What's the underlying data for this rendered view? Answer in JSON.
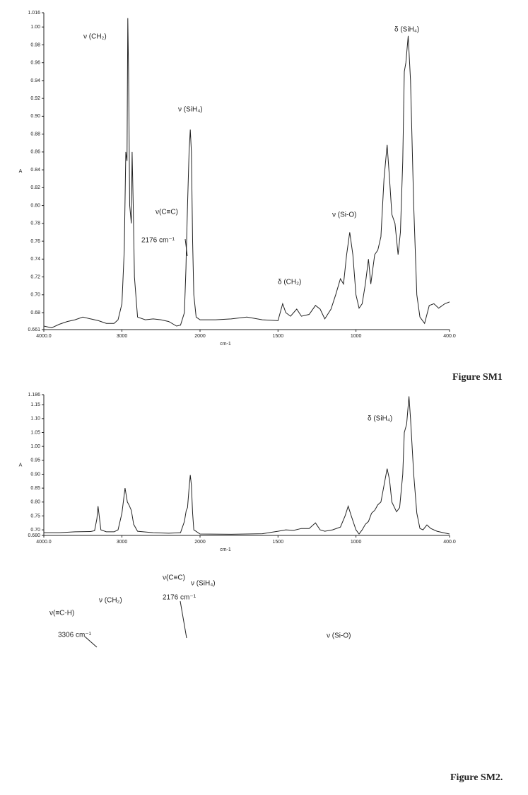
{
  "chart_data": [
    {
      "type": "line",
      "caption": "Figure SM1",
      "x_label": "cm-1",
      "y_label": "A",
      "xlim": [
        4000,
        400
      ],
      "xticks": [
        {
          "value": 4000,
          "label": "4000.0"
        },
        3000,
        2000,
        1500,
        1000,
        {
          "value": 400,
          "label": "400.0"
        }
      ],
      "ylim": [
        0.661,
        1.016
      ],
      "yticks": [
        {
          "value": 0.661,
          "label": "0.661"
        },
        0.68,
        {
          "value": 0.7,
          "label": "0.70"
        },
        0.72,
        0.74,
        0.76,
        0.78,
        {
          "value": 0.8,
          "label": "0.80"
        },
        0.82,
        0.84,
        0.86,
        0.88,
        {
          "value": 0.9,
          "label": "0.90"
        },
        0.92,
        0.94,
        0.96,
        0.98,
        {
          "value": 1,
          "label": "1.00"
        },
        1.016
      ],
      "grid": false,
      "color": "#222222",
      "annotations": [
        "ν (CH₂)",
        "ν (SiH₄)",
        "ν(C≡C)",
        "2176 cm⁻¹",
        "δ (CH₂)",
        "ν (Si-O)",
        "δ (SiH₄)"
      ],
      "x": [
        4000,
        3900,
        3800,
        3700,
        3600,
        3500,
        3400,
        3300,
        3200,
        3100,
        3050,
        3000,
        2970,
        2950,
        2935,
        2925,
        2915,
        2900,
        2880,
        2870,
        2855,
        2840,
        2800,
        2700,
        2600,
        2500,
        2400,
        2300,
        2250,
        2200,
        2180,
        2176,
        2160,
        2140,
        2125,
        2110,
        2095,
        2080,
        2050,
        2000,
        1900,
        1800,
        1700,
        1600,
        1500,
        1470,
        1450,
        1420,
        1380,
        1350,
        1300,
        1260,
        1230,
        1200,
        1160,
        1130,
        1100,
        1080,
        1060,
        1040,
        1020,
        1000,
        980,
        960,
        940,
        920,
        905,
        880,
        860,
        840,
        820,
        800,
        785,
        770,
        750,
        730,
        715,
        700,
        690,
        680,
        665,
        650,
        630,
        610,
        590,
        560,
        530,
        500,
        470,
        430,
        400
      ],
      "values": [
        0.665,
        0.663,
        0.667,
        0.67,
        0.672,
        0.675,
        0.673,
        0.671,
        0.668,
        0.668,
        0.672,
        0.69,
        0.75,
        0.86,
        0.85,
        1.01,
        0.95,
        0.8,
        0.78,
        0.86,
        0.8,
        0.72,
        0.675,
        0.672,
        0.673,
        0.672,
        0.67,
        0.665,
        0.666,
        0.68,
        0.73,
        0.745,
        0.8,
        0.86,
        0.885,
        0.86,
        0.76,
        0.7,
        0.675,
        0.672,
        0.672,
        0.673,
        0.675,
        0.672,
        0.671,
        0.69,
        0.68,
        0.676,
        0.684,
        0.676,
        0.678,
        0.688,
        0.684,
        0.673,
        0.684,
        0.7,
        0.718,
        0.712,
        0.745,
        0.77,
        0.745,
        0.7,
        0.685,
        0.69,
        0.712,
        0.74,
        0.712,
        0.745,
        0.75,
        0.765,
        0.83,
        0.868,
        0.83,
        0.79,
        0.78,
        0.745,
        0.77,
        0.85,
        0.95,
        0.96,
        0.99,
        0.94,
        0.8,
        0.7,
        0.675,
        0.668,
        0.688,
        0.69,
        0.685,
        0.69,
        0.692
      ]
    },
    {
      "type": "line",
      "caption": "Figure SM2.",
      "x_label": "cm-1",
      "y_label": "A",
      "xlim": [
        4000,
        400
      ],
      "xticks": [
        {
          "value": 4000,
          "label": "4000.0"
        },
        3000,
        2000,
        1500,
        1000,
        {
          "value": 400,
          "label": "400.0"
        }
      ],
      "ylim": [
        0.68,
        1.186
      ],
      "yticks": [
        {
          "value": 0.68,
          "label": "0.680"
        },
        {
          "value": 0.7,
          "label": "0.70"
        },
        0.75,
        {
          "value": 0.8,
          "label": "0.80"
        },
        0.85,
        {
          "value": 0.9,
          "label": "0.90"
        },
        0.95,
        {
          "value": 1,
          "label": "1.00"
        },
        1.05,
        {
          "value": 1.1,
          "label": "1.10"
        },
        1.15,
        1.186
      ],
      "grid": false,
      "color": "#222222",
      "annotations": [
        "δ (SiH₄)",
        "ν(C≡C)",
        "2176 cm⁻¹",
        "ν (SiH₄)",
        "ν (CH₂)",
        "ν(≡C-H)",
        "3306 cm⁻¹",
        "ν (Si-O)"
      ],
      "x": [
        4000,
        3800,
        3600,
        3400,
        3350,
        3320,
        3306,
        3295,
        3270,
        3200,
        3100,
        3050,
        3000,
        2960,
        2930,
        2910,
        2880,
        2850,
        2800,
        2600,
        2400,
        2250,
        2200,
        2176,
        2160,
        2140,
        2125,
        2110,
        2095,
        2080,
        2000,
        1800,
        1600,
        1500,
        1450,
        1400,
        1350,
        1300,
        1260,
        1230,
        1200,
        1150,
        1100,
        1070,
        1050,
        1030,
        1000,
        980,
        960,
        940,
        920,
        900,
        880,
        860,
        840,
        820,
        800,
        785,
        770,
        740,
        720,
        700,
        690,
        675,
        660,
        650,
        630,
        610,
        590,
        570,
        545,
        520,
        480,
        440,
        400
      ],
      "values": [
        0.69,
        0.69,
        0.693,
        0.694,
        0.697,
        0.74,
        0.785,
        0.76,
        0.7,
        0.693,
        0.693,
        0.7,
        0.76,
        0.85,
        0.8,
        0.79,
        0.77,
        0.72,
        0.695,
        0.69,
        0.688,
        0.69,
        0.73,
        0.77,
        0.78,
        0.85,
        0.897,
        0.86,
        0.76,
        0.7,
        0.685,
        0.684,
        0.686,
        0.695,
        0.7,
        0.698,
        0.705,
        0.705,
        0.725,
        0.7,
        0.695,
        0.7,
        0.71,
        0.75,
        0.785,
        0.75,
        0.7,
        0.685,
        0.7,
        0.72,
        0.73,
        0.76,
        0.77,
        0.79,
        0.8,
        0.86,
        0.92,
        0.88,
        0.8,
        0.765,
        0.78,
        0.9,
        1.05,
        1.08,
        1.18,
        1.1,
        0.9,
        0.76,
        0.705,
        0.7,
        0.718,
        0.705,
        0.695,
        0.69,
        0.685
      ]
    }
  ]
}
